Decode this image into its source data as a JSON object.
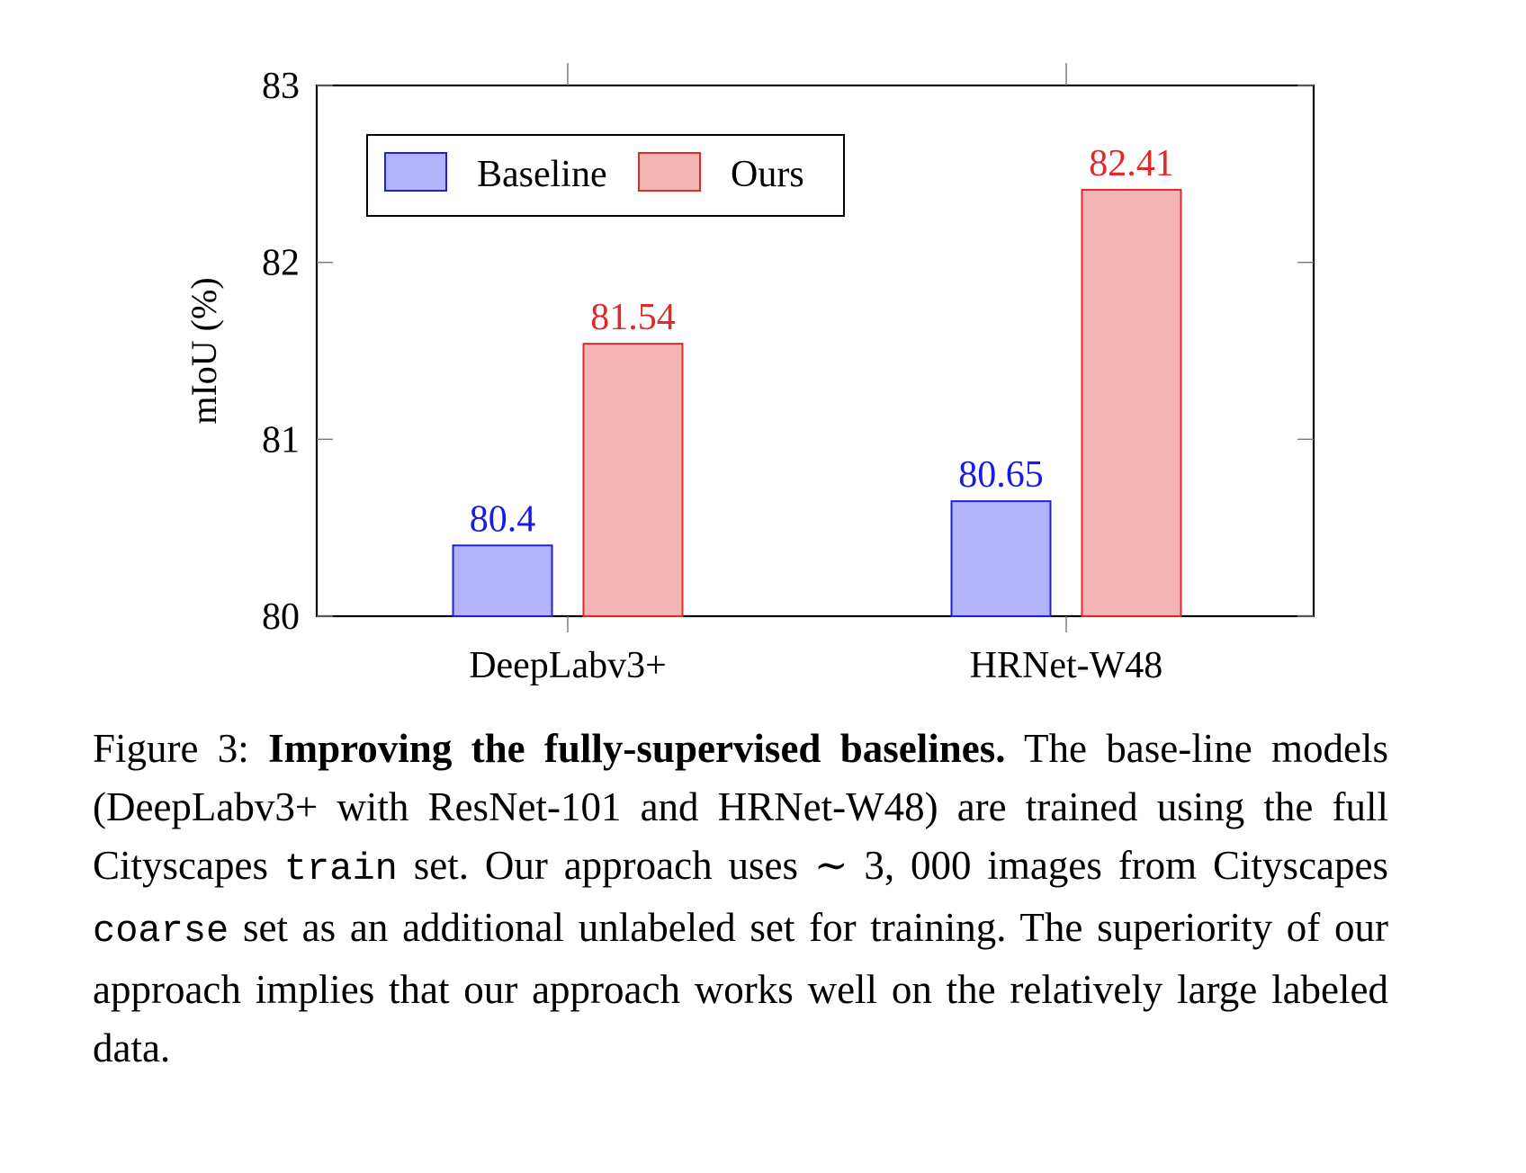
{
  "chart_data": {
    "type": "bar",
    "categories": [
      "DeepLabv3+",
      "HRNet-W48"
    ],
    "series": [
      {
        "name": "Baseline",
        "values": [
          80.4,
          80.65
        ],
        "labels": [
          "80.4",
          "80.65"
        ],
        "color": "#b3b3f9",
        "edge": "#1f1fe0",
        "label_color": "#1a1ae6"
      },
      {
        "name": "Ours",
        "values": [
          81.54,
          82.41
        ],
        "labels": [
          "81.54",
          "82.41"
        ],
        "color": "#f3b4b4",
        "edge": "#e02a2a",
        "label_color": "#e02a2a"
      }
    ],
    "ylabel": "mIoU (%)",
    "ylim": [
      80,
      83
    ],
    "yticks": [
      "80",
      "81",
      "82",
      "83"
    ],
    "legend": "top-left",
    "grid": false
  },
  "caption": {
    "figure_label": "Figure 3:",
    "title": "Improving the fully-supervised baselines.",
    "part1": " The base-line models (DeepLabv3+ with ResNet-101 and HRNet-W48) are trained using the full Cityscapes ",
    "mono1": "train",
    "part2": " set. Our approach uses ∼ 3, 000 images from Cityscapes ",
    "mono2": "coarse",
    "part3": " set as an additional unlabeled set for training. The superiority of our approach implies that our approach works well on the relatively large labeled data."
  }
}
